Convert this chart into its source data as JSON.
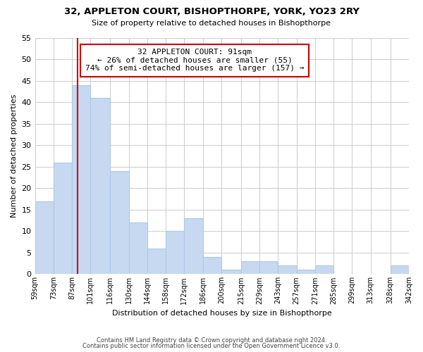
{
  "title": "32, APPLETON COURT, BISHOPTHORPE, YORK, YO23 2RY",
  "subtitle": "Size of property relative to detached houses in Bishopthorpe",
  "xlabel": "Distribution of detached houses by size in Bishopthorpe",
  "ylabel": "Number of detached properties",
  "bin_labels": [
    "59sqm",
    "73sqm",
    "87sqm",
    "101sqm",
    "116sqm",
    "130sqm",
    "144sqm",
    "158sqm",
    "172sqm",
    "186sqm",
    "200sqm",
    "215sqm",
    "229sqm",
    "243sqm",
    "257sqm",
    "271sqm",
    "285sqm",
    "299sqm",
    "313sqm",
    "328sqm",
    "342sqm"
  ],
  "bin_edges": [
    59,
    73,
    87,
    101,
    116,
    130,
    144,
    158,
    172,
    186,
    200,
    215,
    229,
    243,
    257,
    271,
    285,
    299,
    313,
    328,
    342
  ],
  "bar_heights": [
    17,
    26,
    44,
    41,
    24,
    12,
    6,
    10,
    13,
    4,
    1,
    3,
    3,
    2,
    1,
    2,
    0,
    0,
    0,
    2
  ],
  "bar_color": "#c6d9f0",
  "bar_edgecolor": "#aec8e8",
  "vline_value": 91,
  "vline_color": "#cc0000",
  "ylim": [
    0,
    55
  ],
  "yticks": [
    0,
    5,
    10,
    15,
    20,
    25,
    30,
    35,
    40,
    45,
    50,
    55
  ],
  "annotation_title": "32 APPLETON COURT: 91sqm",
  "annotation_line1": "← 26% of detached houses are smaller (55)",
  "annotation_line2": "74% of semi-detached houses are larger (157) →",
  "annotation_box_facecolor": "#ffffff",
  "annotation_box_edgecolor": "#cc0000",
  "footer_line1": "Contains HM Land Registry data © Crown copyright and database right 2024.",
  "footer_line2": "Contains public sector information licensed under the Open Government Licence v3.0.",
  "background_color": "#ffffff",
  "grid_color": "#cccccc"
}
